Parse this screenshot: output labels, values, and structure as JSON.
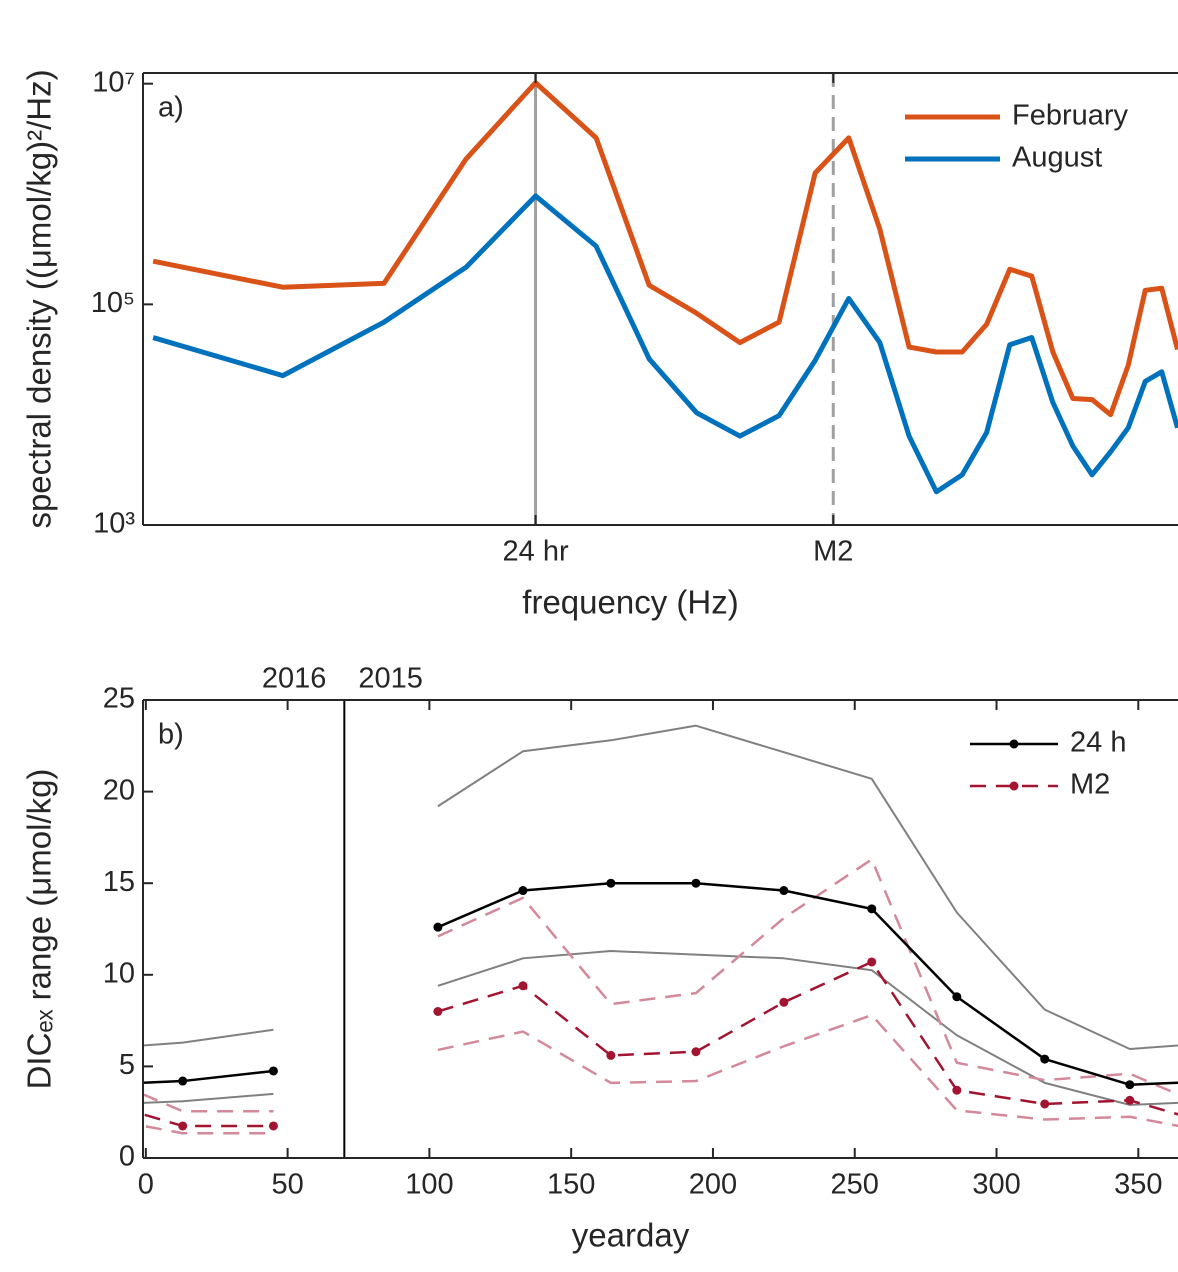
{
  "chart_data": [
    {
      "type": "line",
      "panel_label": "a)",
      "x_label": "frequency (Hz)",
      "y_label": "spectral density ((μmol/kg)²/Hz)",
      "log_x": true,
      "log_y": true,
      "legend": "northeast",
      "xlim": [
        4.85e-06,
        4.8e-05
      ],
      "ylim": [
        1000,
        12500000
      ],
      "xticks": [
        {
          "value": 1.157e-05,
          "label": "24 hr"
        },
        {
          "value": 2.237e-05,
          "label": "M2"
        }
      ],
      "xtick_line_styles": [
        "solid",
        "dashed"
      ],
      "yticks": [
        {
          "value": 1000,
          "label": "10³"
        },
        {
          "value": 100000,
          "label": "10⁵"
        },
        {
          "value": 10000000,
          "label": "10⁷"
        }
      ],
      "x": [
        4.96e-06,
        6.61e-06,
        8.27e-06,
        9.92e-06,
        1.157e-05,
        1.323e-05,
        1.488e-05,
        1.653e-05,
        1.819e-05,
        1.984e-05,
        2.149e-05,
        2.315e-05,
        2.48e-05,
        2.646e-05,
        2.811e-05,
        2.976e-05,
        3.142e-05,
        3.307e-05,
        3.472e-05,
        3.638e-05,
        3.803e-05,
        3.968e-05,
        4.134e-05,
        4.299e-05,
        4.464e-05,
        4.63e-05,
        4.795e-05
      ],
      "series": [
        {
          "name": "February",
          "color": "#d95319",
          "width": 5,
          "values": [
            246000,
            143000,
            155000,
            2080000,
            10200000,
            3230000,
            149000,
            83000,
            45000,
            69000,
            1550000,
            3230000,
            480000,
            41000,
            37000,
            37000,
            66000,
            208000,
            180000,
            37000,
            14000,
            13700,
            10000,
            28000,
            134000,
            140000,
            39000
          ]
        },
        {
          "name": "August",
          "color": "#0072bd",
          "width": 5,
          "values": [
            50000,
            22600,
            69000,
            217000,
            960000,
            337000,
            32000,
            10400,
            6400,
            9800,
            31000,
            113000,
            45000,
            6400,
            2000,
            2850,
            6900,
            43000,
            50000,
            12900,
            5200,
            2850,
            4600,
            7600,
            20000,
            24500,
            7600
          ]
        }
      ]
    },
    {
      "type": "line",
      "panel_label": "b)",
      "x_label": "yearday",
      "y_label": "DICₑₓ range (μmol/kg)",
      "log_x": false,
      "log_y": false,
      "legend": "northeast",
      "xlim": [
        -1,
        364
      ],
      "ylim": [
        0,
        25
      ],
      "xticks": [
        0,
        50,
        100,
        150,
        200,
        250,
        300,
        350
      ],
      "yticks": [
        0,
        5,
        10,
        15,
        20,
        25
      ],
      "year_break": 70,
      "year_labels": [
        "2016",
        "2015"
      ],
      "x": [
        -18,
        13,
        45,
        70,
        103,
        133,
        164,
        194,
        225,
        256,
        286,
        317,
        347,
        378
      ],
      "series": [
        {
          "color": "#808080",
          "width": 2,
          "values": [
            5.95,
            6.3,
            7.0,
            null,
            19.2,
            22.2,
            22.8,
            23.6,
            22.15,
            20.7,
            13.4,
            8.1,
            5.95,
            6.3
          ]
        },
        {
          "color": "#808080",
          "width": 2,
          "values": [
            2.9,
            3.1,
            3.5,
            null,
            9.4,
            10.9,
            11.3,
            11.1,
            10.9,
            10.25,
            6.7,
            4.1,
            2.9,
            3.1
          ]
        },
        {
          "color": "#d4899b",
          "width": 2.5,
          "dashed": true,
          "values": [
            4.6,
            2.55,
            2.55,
            null,
            12.1,
            14.2,
            8.4,
            9.0,
            13.1,
            16.3,
            5.2,
            4.25,
            4.6,
            2.55
          ]
        },
        {
          "color": "#d4899b",
          "width": 2.5,
          "dashed": true,
          "values": [
            2.25,
            1.35,
            1.35,
            null,
            5.9,
            6.9,
            4.1,
            4.2,
            6.1,
            7.8,
            2.6,
            2.1,
            2.25,
            1.35
          ]
        },
        {
          "name": "24 h",
          "color": "#000000",
          "width": 2.5,
          "marker": true,
          "values": [
            4.0,
            4.2,
            4.75,
            null,
            12.6,
            14.6,
            15.0,
            15.0,
            14.6,
            13.6,
            8.8,
            5.4,
            4.0,
            4.2
          ]
        },
        {
          "name": "M2",
          "color": "#a2142f",
          "width": 2.5,
          "dashed": true,
          "marker": true,
          "values": [
            3.15,
            1.75,
            1.75,
            null,
            8.0,
            9.4,
            5.6,
            5.8,
            8.5,
            10.7,
            3.7,
            2.95,
            3.15,
            1.75
          ]
        }
      ]
    }
  ]
}
